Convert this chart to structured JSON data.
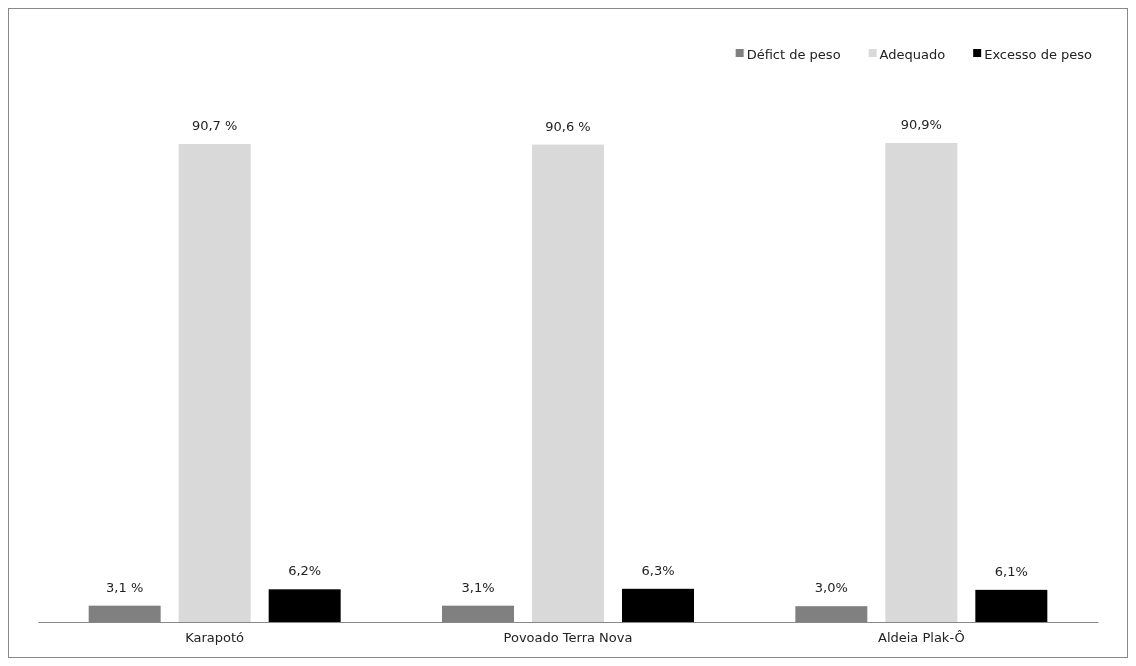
{
  "chart_data": {
    "type": "bar",
    "categories": [
      "Karapotó",
      "Povoado Terra Nova",
      "Aldeia Plak-Ô"
    ],
    "series": [
      {
        "name": "Défict de peso",
        "color": "#808080",
        "values": [
          3.1,
          3.1,
          3.0
        ],
        "value_labels": [
          "3,1 %",
          "3,1%",
          "3,0%"
        ]
      },
      {
        "name": "Adequado",
        "color": "#d9d9d9",
        "values": [
          90.7,
          90.6,
          90.9
        ],
        "value_labels": [
          "90,7 %",
          "90,6 %",
          "90,9%"
        ]
      },
      {
        "name": "Excesso de peso",
        "color": "#000000",
        "values": [
          6.2,
          6.3,
          6.1
        ],
        "value_labels": [
          "6,2%",
          "6,3%",
          "6,1%"
        ]
      }
    ],
    "legend": "top right"
  }
}
